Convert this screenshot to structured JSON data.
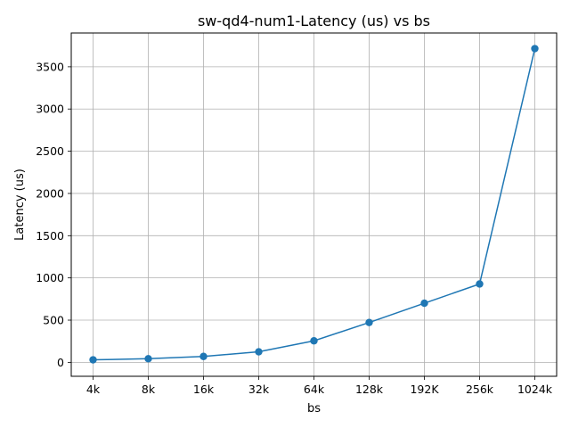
{
  "chart_data": {
    "type": "line",
    "title": "sw-qd4-num1-Latency (us) vs bs",
    "xlabel": "bs",
    "ylabel": "Latency (us)",
    "categories": [
      "4k",
      "8k",
      "16k",
      "32k",
      "64k",
      "128k",
      "192K",
      "256k",
      "1024k"
    ],
    "series": [
      {
        "values": [
          30,
          43,
          70,
          125,
          255,
          472,
          700,
          928,
          3715
        ],
        "color": "#1f77b4",
        "marker": "circle"
      }
    ],
    "ylim": [
      -165,
      3900
    ],
    "yticks": [
      0,
      500,
      1000,
      1500,
      2000,
      2500,
      3000,
      3500
    ],
    "grid": true,
    "legend": "none"
  }
}
